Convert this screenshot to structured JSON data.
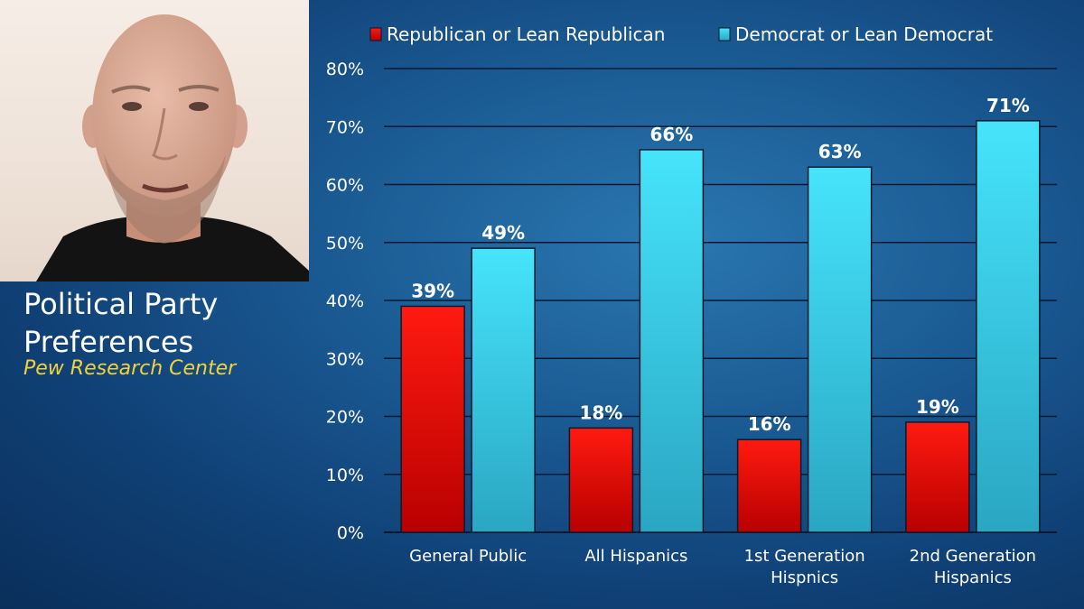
{
  "slide": {
    "title": "Political Party Preferences",
    "source": "Pew Research Center"
  },
  "colors": {
    "republican": "#e50000",
    "democrat": "#3fd6f0",
    "background": "#1b5b94",
    "source_text": "#f2d23a"
  },
  "chart_data": {
    "type": "bar",
    "categories": [
      [
        "General Public"
      ],
      [
        "All Hispanics"
      ],
      [
        "1st Generation",
        "Hispnics"
      ],
      [
        "2nd Generation",
        "Hispanics"
      ]
    ],
    "series": [
      {
        "name": "Republican or Lean Republican",
        "values": [
          39,
          18,
          16,
          19
        ],
        "labels": [
          "39%",
          "18%",
          "16%",
          "19%"
        ]
      },
      {
        "name": "Democrat or Lean Democrat",
        "values": [
          49,
          66,
          63,
          71
        ],
        "labels": [
          "49%",
          "66%",
          "63%",
          "71%"
        ]
      }
    ],
    "ylim": [
      0,
      80
    ],
    "yticks": [
      "0%",
      "10%",
      "20%",
      "30%",
      "40%",
      "50%",
      "60%",
      "70%",
      "80%"
    ],
    "grid": true,
    "legend": "top"
  }
}
